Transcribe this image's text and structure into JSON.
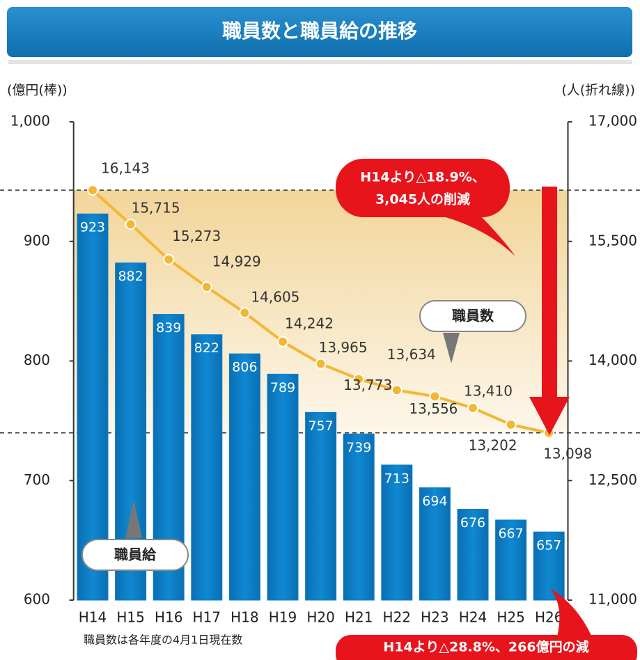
{
  "chart_data": {
    "type": "combo",
    "title": "職員数と職員給の推移",
    "ylabel": "(億円(棒))",
    "y2label": "(人(折れ線))",
    "categories": [
      "H14",
      "H15",
      "H16",
      "H17",
      "H18",
      "H19",
      "H20",
      "H21",
      "H22",
      "H23",
      "H24",
      "H25",
      "H26"
    ],
    "series": [
      {
        "name": "職員給",
        "type": "bar",
        "color": "#0b7fc7",
        "values": [
          923,
          882,
          839,
          822,
          806,
          789,
          757,
          739,
          713,
          694,
          676,
          667,
          657
        ]
      },
      {
        "name": "職員数",
        "type": "line",
        "axis": "y2",
        "color": "#f3b733",
        "values": [
          16143,
          15715,
          15273,
          14929,
          14605,
          14242,
          13965,
          13773,
          13634,
          13556,
          13410,
          13202,
          13098
        ],
        "value_labels": [
          "16,143",
          "15,715",
          "15,273",
          "14,929",
          "14,605",
          "14,242",
          "13,965",
          "13,773",
          "13,634",
          "13,556",
          "13,410",
          "13,202",
          "13,098"
        ]
      }
    ],
    "ylim": [
      600,
      1000
    ],
    "yticks": [
      600,
      700,
      800,
      900,
      {
        "value": 1000,
        "label": "1,000"
      }
    ],
    "y2lim": [
      11000,
      17000
    ],
    "y2ticks": [
      {
        "value": 11000,
        "label": "11,000"
      },
      {
        "value": 12500,
        "label": "12,500"
      },
      {
        "value": 14000,
        "label": "14,000"
      },
      {
        "value": 15500,
        "label": "15,500"
      },
      {
        "value": 17000,
        "label": "17,000"
      }
    ],
    "annotations": [
      {
        "lines": [
          "H14より△18.9%、",
          "3,045人の削減"
        ]
      },
      {
        "lines": [
          "H14より△28.8%、266億円の減"
        ]
      }
    ],
    "note": "職員数は各年度の4月1日現在数"
  }
}
